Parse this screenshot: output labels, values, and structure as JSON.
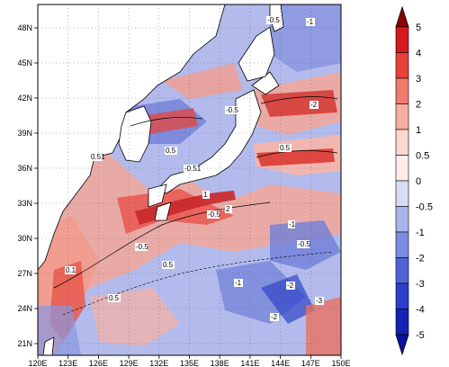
{
  "map": {
    "lon_ticks": [
      "120E",
      "123E",
      "126E",
      "129E",
      "132E",
      "135E",
      "138E",
      "141E",
      "144E",
      "147E",
      "150E"
    ],
    "lat_ticks": [
      "21N",
      "24N",
      "27N",
      "30N",
      "33N",
      "36N",
      "39N",
      "42N",
      "45N",
      "48N"
    ],
    "lon_range": [
      120,
      150
    ],
    "lat_range": [
      20,
      50
    ],
    "grid": "dashed",
    "contour_labels": [
      "-0.5",
      "-1",
      "-2",
      "0.5",
      "1",
      "2",
      "0.1",
      "0.51",
      "-0.51",
      "-3"
    ]
  },
  "colorbar": {
    "levels": [
      "5",
      "4",
      "3",
      "2",
      "1",
      "0.5",
      "0",
      "-0.5",
      "-1",
      "-2",
      "-3",
      "-4",
      "-5"
    ],
    "colors": [
      "#8b0000",
      "#d7191c",
      "#e8413a",
      "#f07a6c",
      "#f6aea0",
      "#fbd7cf",
      "#d8dcf5",
      "#aab4ea",
      "#7c8ce0",
      "#5064d6",
      "#2a3fcb",
      "#1523b3"
    ],
    "orientation": "vertical",
    "extends": "both"
  }
}
